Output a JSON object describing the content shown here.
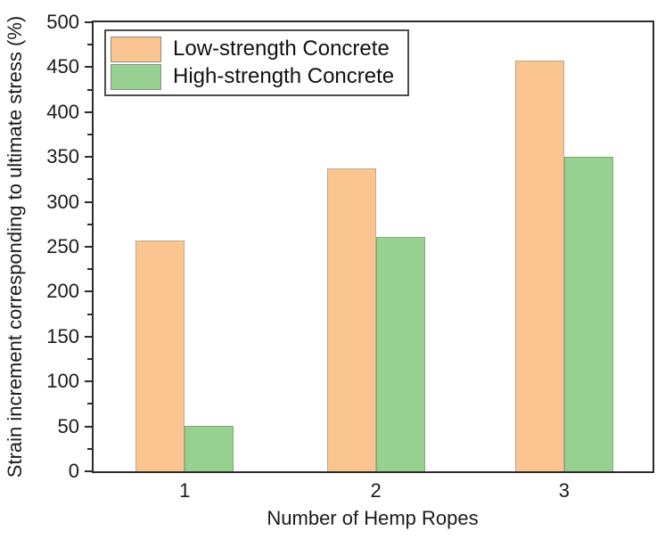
{
  "chart_data": {
    "type": "bar",
    "title": "",
    "xlabel": "Number of Hemp Ropes",
    "ylabel": "Strain increment corresponding to ultimate stress (%)",
    "categories": [
      "1",
      "2",
      "3"
    ],
    "series": [
      {
        "name": "Low-strength Concrete",
        "color": "#FAC491",
        "edge_color": "#bda887",
        "values": [
          257,
          337,
          457
        ]
      },
      {
        "name": "High-strength Concrete",
        "color": "#97D190",
        "edge_color": "#7fa578",
        "values": [
          51,
          261,
          350
        ]
      }
    ],
    "ylim": [
      0,
      500
    ],
    "y_major_step": 50,
    "y_minor_step": 25,
    "y_ticks": [
      0,
      50,
      100,
      150,
      200,
      250,
      300,
      350,
      400,
      450,
      500
    ],
    "grid": false,
    "legend_position": "top-left",
    "axis_color": "#2b2b2b",
    "text_color": "#1a1a1a",
    "background_color": "#ffffff"
  }
}
